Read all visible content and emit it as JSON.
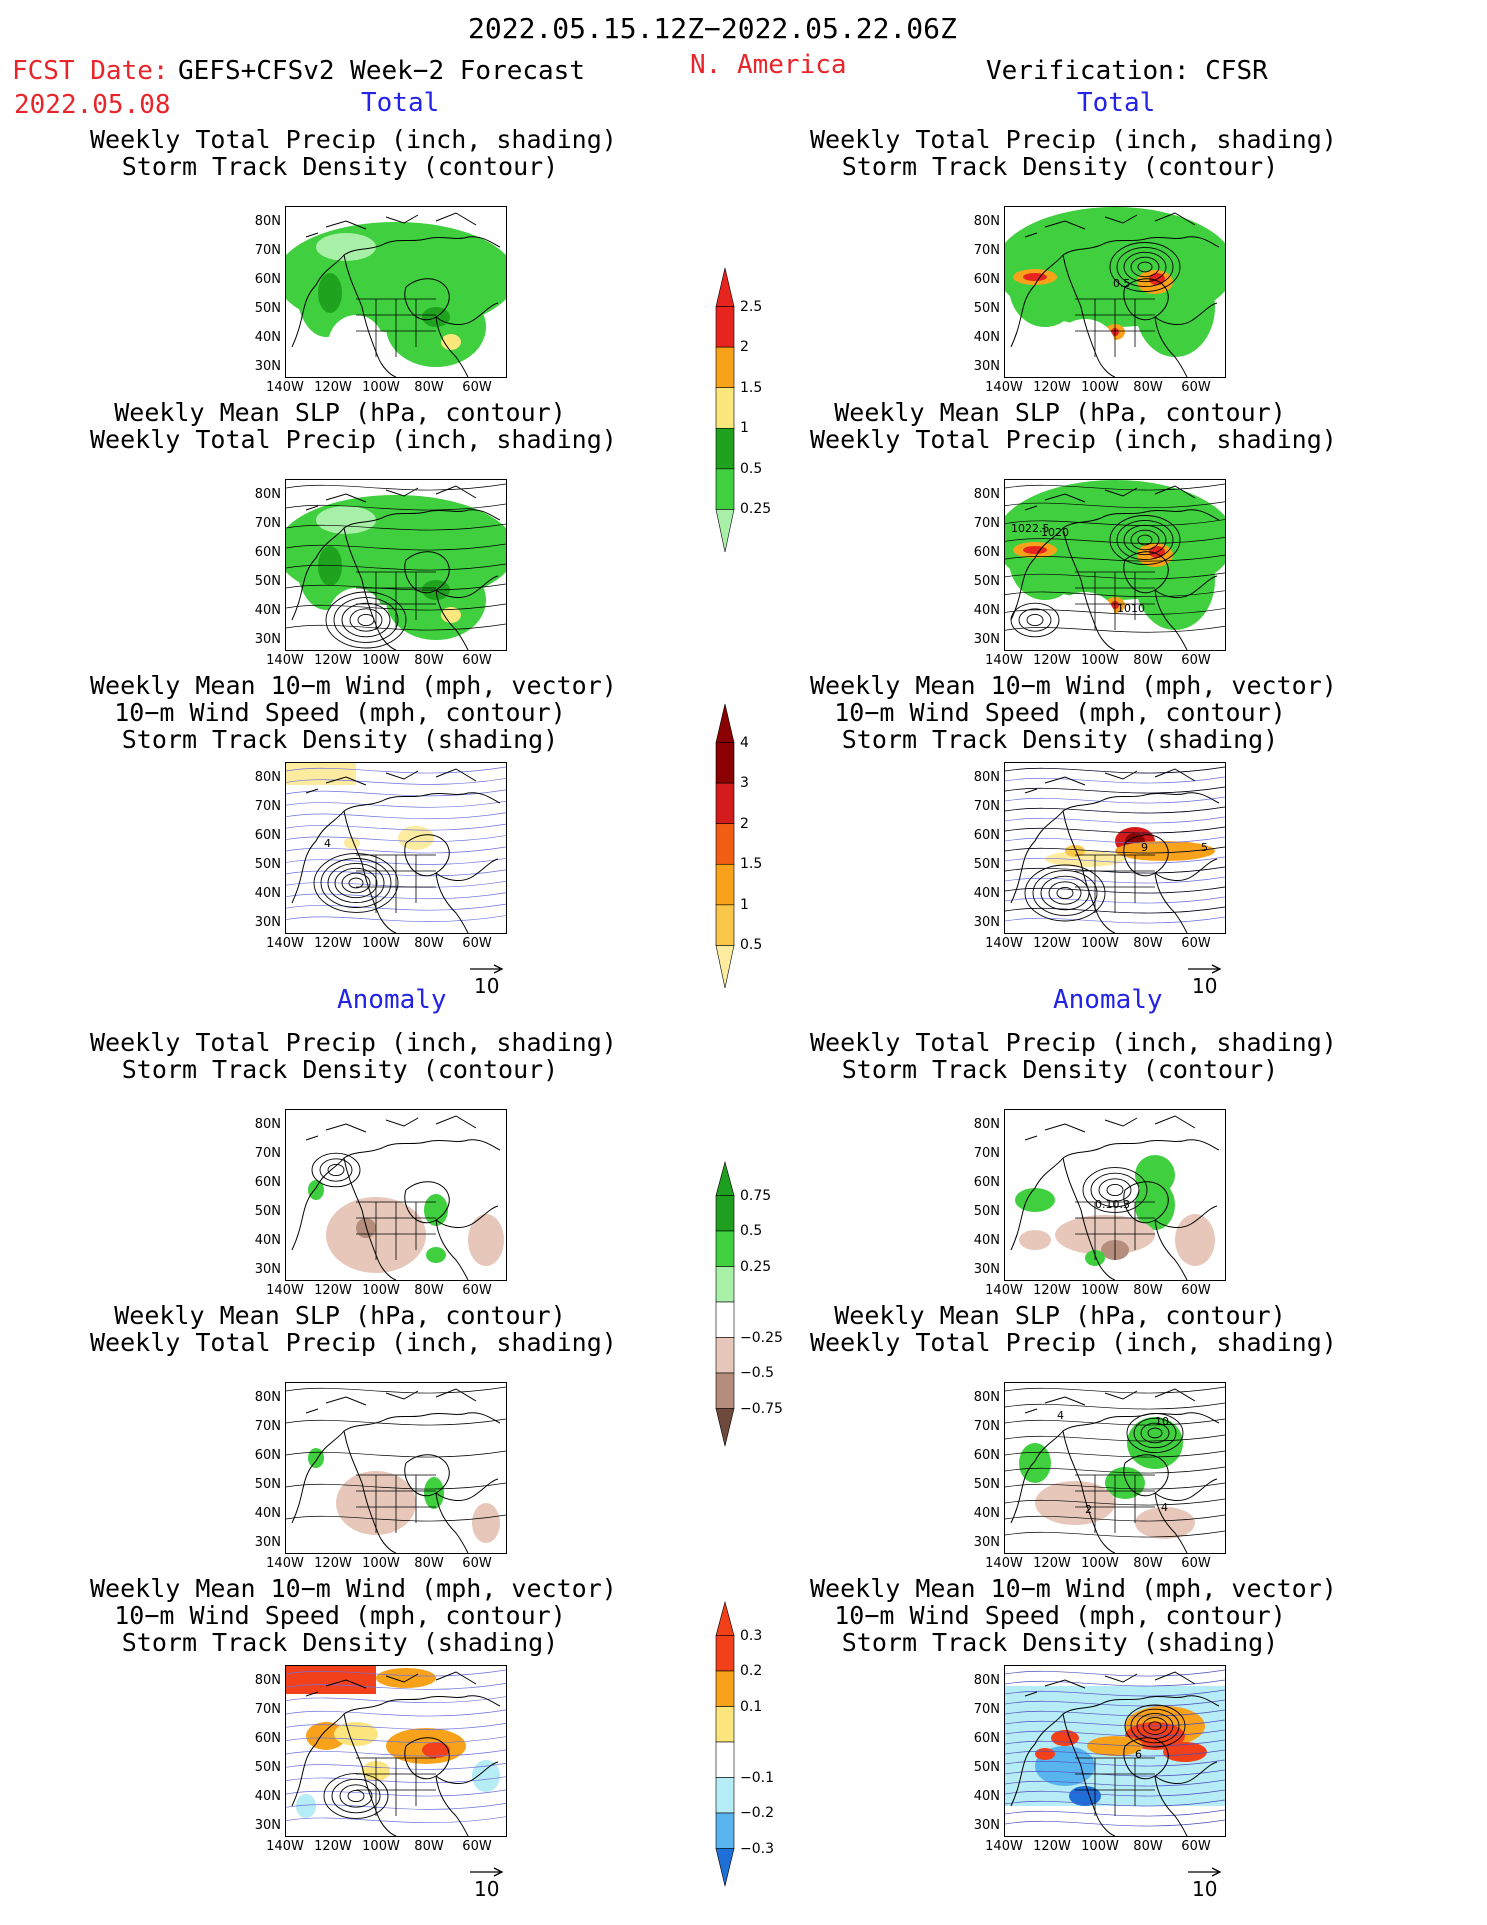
{
  "header": {
    "date_range": "2022.05.15.12Z−2022.05.22.06Z",
    "fcst_label": "FCST Date:",
    "fcst_product": "GEFS+CFSv2 Week−2 Forecast",
    "fcst_date": "2022.05.08",
    "region": "N. America",
    "verification": "Verification: CFSR"
  },
  "sections": {
    "total": "Total",
    "anomaly": "Anomaly"
  },
  "panel_titles": {
    "precip_storm": [
      "Weekly Total Precip (inch, shading)",
      "Storm Track Density (contour)"
    ],
    "slp_precip": [
      "Weekly Mean SLP (hPa, contour)",
      "Weekly Total Precip (inch, shading)"
    ],
    "wind_storm": [
      "Weekly Mean 10−m Wind (mph, vector)",
      "10−m Wind Speed (mph, contour)",
      "Storm Track Density (shading)"
    ]
  },
  "axes": {
    "lat": [
      "80N",
      "70N",
      "60N",
      "50N",
      "40N",
      "30N"
    ],
    "lon": [
      "140W",
      "120W",
      "100W",
      "80W",
      "60W"
    ]
  },
  "vector_ref": "10",
  "map_labels": {
    "verif_total_precip_contour": "0.5",
    "verif_total_slp_1": "1022.5",
    "verif_total_slp_2": "1020",
    "verif_total_slp_3": "1010",
    "verif_anom_precip_contour": "0.10.3",
    "verif_anom_slp_1": "4",
    "verif_anom_slp_2": "10",
    "verif_anom_slp_3": "2",
    "verif_anom_slp_4": "4",
    "fcst_total_wind_contour": "4",
    "verif_total_wind_contour_1": "9",
    "verif_total_wind_contour_2": "5",
    "verif_anom_wind_contour": "6"
  },
  "colorbars": {
    "precip_total": {
      "labels": [
        "2.5",
        "2",
        "1.5",
        "1",
        "0.5",
        "0.25"
      ],
      "colors": [
        "#e8241e",
        "#f7a31a",
        "#fbe77c",
        "#1fa31f",
        "#3fcf3f",
        "#a8f0a8"
      ]
    },
    "storm_total": {
      "labels": [
        "4",
        "3",
        "2",
        "1.5",
        "1",
        "0.5"
      ],
      "colors": [
        "#8b0000",
        "#d41b1b",
        "#f25d14",
        "#f7a21a",
        "#f9c64a",
        "#fdeba0"
      ]
    },
    "precip_anom": {
      "labels": [
        "0.75",
        "0.5",
        "0.25",
        "−0.25",
        "−0.5",
        "−0.75"
      ],
      "colors": [
        "#1f9f1f",
        "#3fcf3f",
        "#a8f0a8",
        "#ffffff",
        "#e6c7b9",
        "#b58d7d",
        "#6e4a3c"
      ]
    },
    "storm_anom": {
      "labels": [
        "0.3",
        "0.2",
        "0.1",
        "−0.1",
        "−0.2",
        "−0.3"
      ],
      "colors": [
        "#f2401a",
        "#f7a21a",
        "#fbe57c",
        "#ffffff",
        "#b5ecf5",
        "#58b4ee",
        "#1f6fd8"
      ]
    }
  }
}
